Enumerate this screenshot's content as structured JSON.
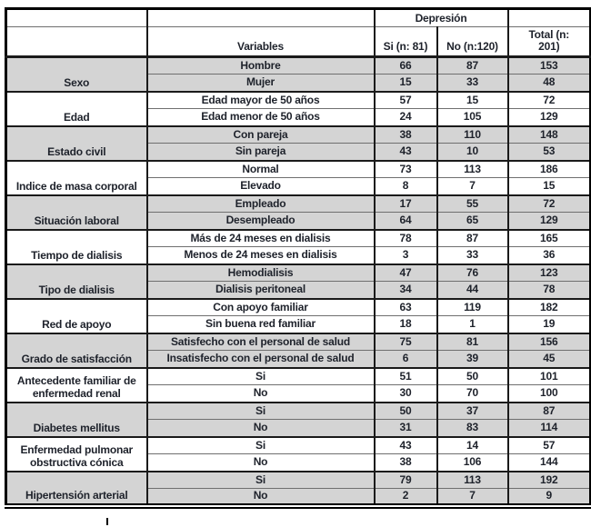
{
  "chart_data": {
    "type": "table",
    "header": {
      "depression_label": "Depresión",
      "variables_label": "Variables",
      "si_label": "Si (n: 81)",
      "no_label": "No (n:120)",
      "total_label": "Total (n: 201)"
    },
    "groups": [
      {
        "category": "Sexo",
        "shaded": true,
        "rows": [
          {
            "variable": "Hombre",
            "si": "66",
            "no": "87",
            "total": "153"
          },
          {
            "variable": "Mujer",
            "si": "15",
            "no": "33",
            "total": "48"
          }
        ]
      },
      {
        "category": "Edad",
        "shaded": false,
        "rows": [
          {
            "variable": "Edad mayor de 50 años",
            "si": "57",
            "no": "15",
            "total": "72"
          },
          {
            "variable": "Edad menor de 50 años",
            "si": "24",
            "no": "105",
            "total": "129"
          }
        ]
      },
      {
        "category": "Estado civil",
        "shaded": true,
        "rows": [
          {
            "variable": "Con pareja",
            "si": "38",
            "no": "110",
            "total": "148"
          },
          {
            "variable": "Sin pareja",
            "si": "43",
            "no": "10",
            "total": "53"
          }
        ]
      },
      {
        "category": "Indice de masa corporal",
        "shaded": false,
        "rows": [
          {
            "variable": "Normal",
            "si": "73",
            "no": "113",
            "total": "186"
          },
          {
            "variable": "Elevado",
            "si": "8",
            "no": "7",
            "total": "15"
          }
        ]
      },
      {
        "category": "Situación laboral",
        "shaded": true,
        "rows": [
          {
            "variable": "Empleado",
            "si": "17",
            "no": "55",
            "total": "72"
          },
          {
            "variable": "Desempleado",
            "si": "64",
            "no": "65",
            "total": "129"
          }
        ]
      },
      {
        "category": "Tiempo de dialisis",
        "shaded": false,
        "rows": [
          {
            "variable": "Más de 24 meses en dialisis",
            "si": "78",
            "no": "87",
            "total": "165"
          },
          {
            "variable": "Menos de 24 meses en dialisis",
            "si": "3",
            "no": "33",
            "total": "36"
          }
        ]
      },
      {
        "category": "Tipo de dialisis",
        "shaded": true,
        "rows": [
          {
            "variable": "Hemodialisis",
            "si": "47",
            "no": "76",
            "total": "123"
          },
          {
            "variable": "Dialisis peritoneal",
            "si": "34",
            "no": "44",
            "total": "78"
          }
        ]
      },
      {
        "category": "Red de apoyo",
        "shaded": false,
        "rows": [
          {
            "variable": "Con apoyo familiar",
            "si": "63",
            "no": "119",
            "total": "182"
          },
          {
            "variable": "Sin buena red familiar",
            "si": "18",
            "no": "1",
            "total": "19"
          }
        ]
      },
      {
        "category": "Grado de satisfacción",
        "shaded": true,
        "rows": [
          {
            "variable": "Satisfecho con el personal de salud",
            "si": "75",
            "no": "81",
            "total": "156"
          },
          {
            "variable": "Insatisfecho con el personal de salud",
            "si": "6",
            "no": "39",
            "total": "45"
          }
        ]
      },
      {
        "category": "Antecedente familiar de enfermedad renal",
        "shaded": false,
        "rows": [
          {
            "variable": "Si",
            "si": "51",
            "no": "50",
            "total": "101"
          },
          {
            "variable": "No",
            "si": "30",
            "no": "70",
            "total": "100"
          }
        ]
      },
      {
        "category": "Diabetes mellitus",
        "shaded": true,
        "rows": [
          {
            "variable": "Si",
            "si": "50",
            "no": "37",
            "total": "87"
          },
          {
            "variable": "No",
            "si": "31",
            "no": "83",
            "total": "114"
          }
        ]
      },
      {
        "category": "Enfermedad pulmonar obstructiva cónica",
        "shaded": false,
        "rows": [
          {
            "variable": "Si",
            "si": "43",
            "no": "14",
            "total": "57"
          },
          {
            "variable": "No",
            "si": "38",
            "no": "106",
            "total": "144"
          }
        ]
      },
      {
        "category": "Hipertensión arterial",
        "shaded": true,
        "rows": [
          {
            "variable": "Si",
            "si": "79",
            "no": "113",
            "total": "192"
          },
          {
            "variable": "No",
            "si": "2",
            "no": "7",
            "total": "9"
          }
        ]
      }
    ]
  },
  "colors": {
    "shaded_row": "#d4d4d4",
    "border_dark": "#1a1a1a",
    "border_light": "#6f6f6f",
    "text": "#1e222b"
  }
}
